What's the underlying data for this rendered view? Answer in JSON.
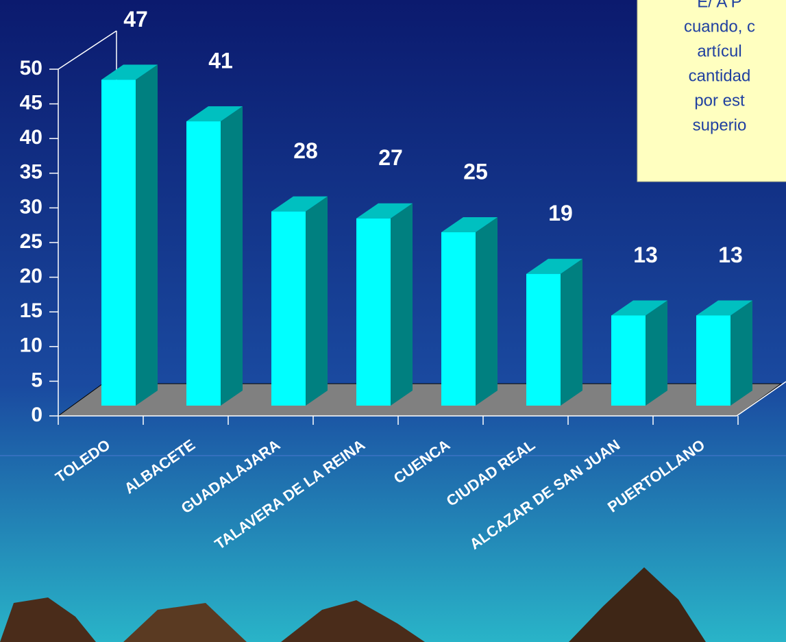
{
  "chart_data": {
    "type": "bar3d",
    "categories": [
      "TOLEDO",
      "ALBACETE",
      "GUADALAJARA",
      "TALAVERA DE LA REINA",
      "CUENCA",
      "CIUDAD REAL",
      "ALCAZAR DE SAN JUAN",
      "PUERTOLLANO"
    ],
    "values": [
      47,
      41,
      28,
      27,
      25,
      19,
      13,
      13
    ],
    "color": "#00ffff",
    "ylim": [
      0,
      50
    ],
    "yticks": [
      0,
      5,
      10,
      15,
      20,
      25,
      30,
      35,
      40,
      45,
      50
    ]
  },
  "note": {
    "lines": [
      "cuando, c",
      "artícul",
      "cantidad",
      "por est",
      "superio"
    ]
  }
}
